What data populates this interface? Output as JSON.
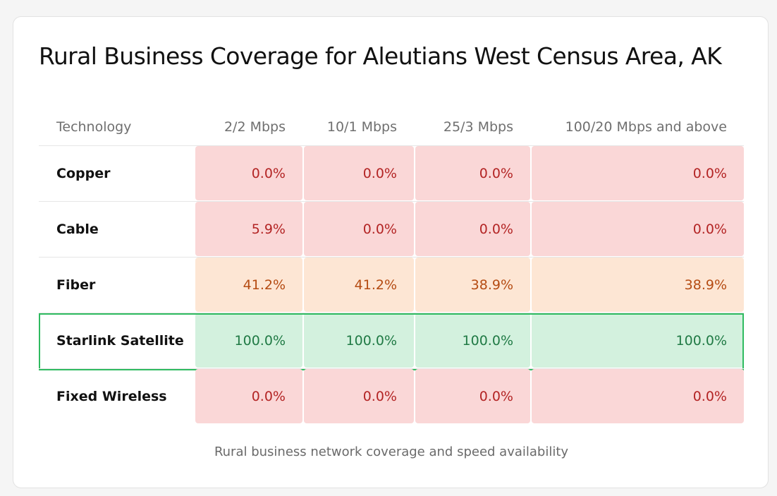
{
  "title": "Rural Business Coverage for Aleutians West Census Area, AK",
  "caption": "Rural business network coverage and speed availability",
  "colors": {
    "low_bg": "#fad7d7",
    "low_text": "#b32424",
    "mid_bg": "#fde6d4",
    "mid_text": "#b54b12",
    "high_bg": "#d3f1de",
    "high_text": "#207a45",
    "highlight_border": "#2fbb60"
  },
  "highlighted_row": "Starlink Satellite",
  "chart_data": {
    "type": "table",
    "title": "Rural Business Coverage for Aleutians West Census Area, AK",
    "row_header_label": "Technology",
    "columns": [
      "2/2 Mbps",
      "10/1 Mbps",
      "25/3 Mbps",
      "100/20 Mbps and above"
    ],
    "rows": [
      {
        "technology": "Copper",
        "values": [
          0.0,
          0.0,
          0.0,
          0.0
        ],
        "display": [
          "0.0%",
          "0.0%",
          "0.0%",
          "0.0%"
        ]
      },
      {
        "technology": "Cable",
        "values": [
          5.9,
          0.0,
          0.0,
          0.0
        ],
        "display": [
          "5.9%",
          "0.0%",
          "0.0%",
          "0.0%"
        ]
      },
      {
        "technology": "Fiber",
        "values": [
          41.2,
          41.2,
          38.9,
          38.9
        ],
        "display": [
          "41.2%",
          "41.2%",
          "38.9%",
          "38.9%"
        ]
      },
      {
        "technology": "Starlink Satellite",
        "values": [
          100.0,
          100.0,
          100.0,
          100.0
        ],
        "display": [
          "100.0%",
          "100.0%",
          "100.0%",
          "100.0%"
        ]
      },
      {
        "technology": "Fixed Wireless",
        "values": [
          0.0,
          0.0,
          0.0,
          0.0
        ],
        "display": [
          "0.0%",
          "0.0%",
          "0.0%",
          "0.0%"
        ]
      }
    ]
  }
}
